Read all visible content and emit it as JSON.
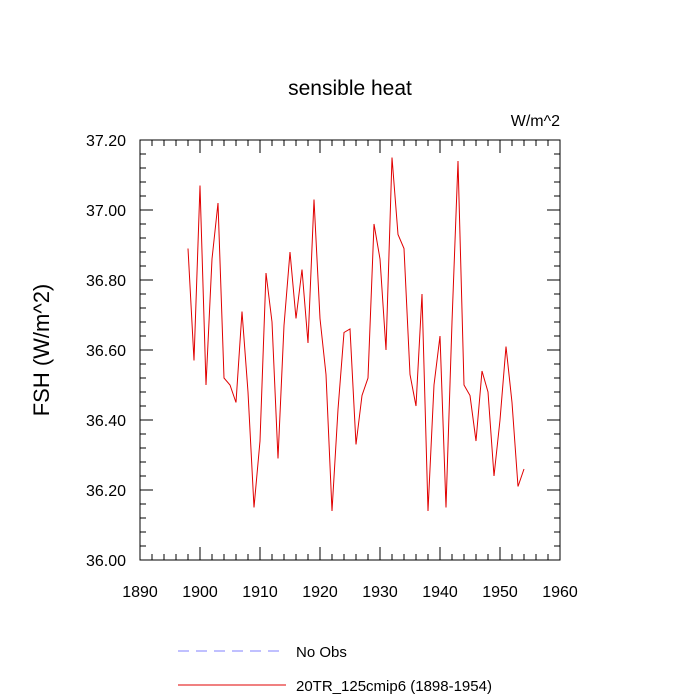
{
  "chart_data": {
    "type": "line",
    "title": "sensible heat",
    "units": "W/m^2",
    "ylabel": "FSH  (W/m^2)",
    "xlabel": "",
    "xlim": [
      1890,
      1960
    ],
    "ylim": [
      36.0,
      37.2
    ],
    "xticks": [
      1890,
      1900,
      1910,
      1920,
      1930,
      1940,
      1950,
      1960
    ],
    "yticks": [
      36.0,
      36.2,
      36.4,
      36.6,
      36.8,
      37.0,
      37.2
    ],
    "ytick_labels": [
      "36.00",
      "36.20",
      "36.40",
      "36.60",
      "36.80",
      "37.00",
      "37.20"
    ],
    "grid": false,
    "legend_position": "bottom",
    "series": [
      {
        "name": "20TR_125cmip6 (1898-1954)",
        "color": "#e00000",
        "style": "solid",
        "x": [
          1898,
          1899,
          1900,
          1901,
          1902,
          1903,
          1904,
          1905,
          1906,
          1907,
          1908,
          1909,
          1910,
          1911,
          1912,
          1913,
          1914,
          1915,
          1916,
          1917,
          1918,
          1919,
          1920,
          1921,
          1922,
          1923,
          1924,
          1925,
          1926,
          1927,
          1928,
          1929,
          1930,
          1931,
          1932,
          1933,
          1934,
          1935,
          1936,
          1937,
          1938,
          1939,
          1940,
          1941,
          1942,
          1943,
          1944,
          1945,
          1946,
          1947,
          1948,
          1949,
          1950,
          1951,
          1952,
          1953,
          1954
        ],
        "y": [
          36.89,
          36.57,
          37.07,
          36.5,
          36.86,
          37.02,
          36.52,
          36.5,
          36.45,
          36.71,
          36.48,
          36.15,
          36.34,
          36.82,
          36.68,
          36.29,
          36.67,
          36.88,
          36.69,
          36.83,
          36.62,
          37.03,
          36.69,
          36.53,
          36.14,
          36.43,
          36.65,
          36.66,
          36.33,
          36.47,
          36.52,
          36.96,
          36.86,
          36.6,
          37.15,
          36.93,
          36.89,
          36.53,
          36.44,
          36.76,
          36.14,
          36.5,
          36.64,
          36.15,
          36.68,
          37.14,
          36.5,
          36.47,
          36.34,
          36.54,
          36.48,
          36.24,
          36.4,
          36.61,
          36.45,
          36.21,
          36.26
        ]
      },
      {
        "name": "No Obs",
        "color": "#8080ff",
        "style": "dashed",
        "x": [],
        "y": []
      }
    ]
  }
}
